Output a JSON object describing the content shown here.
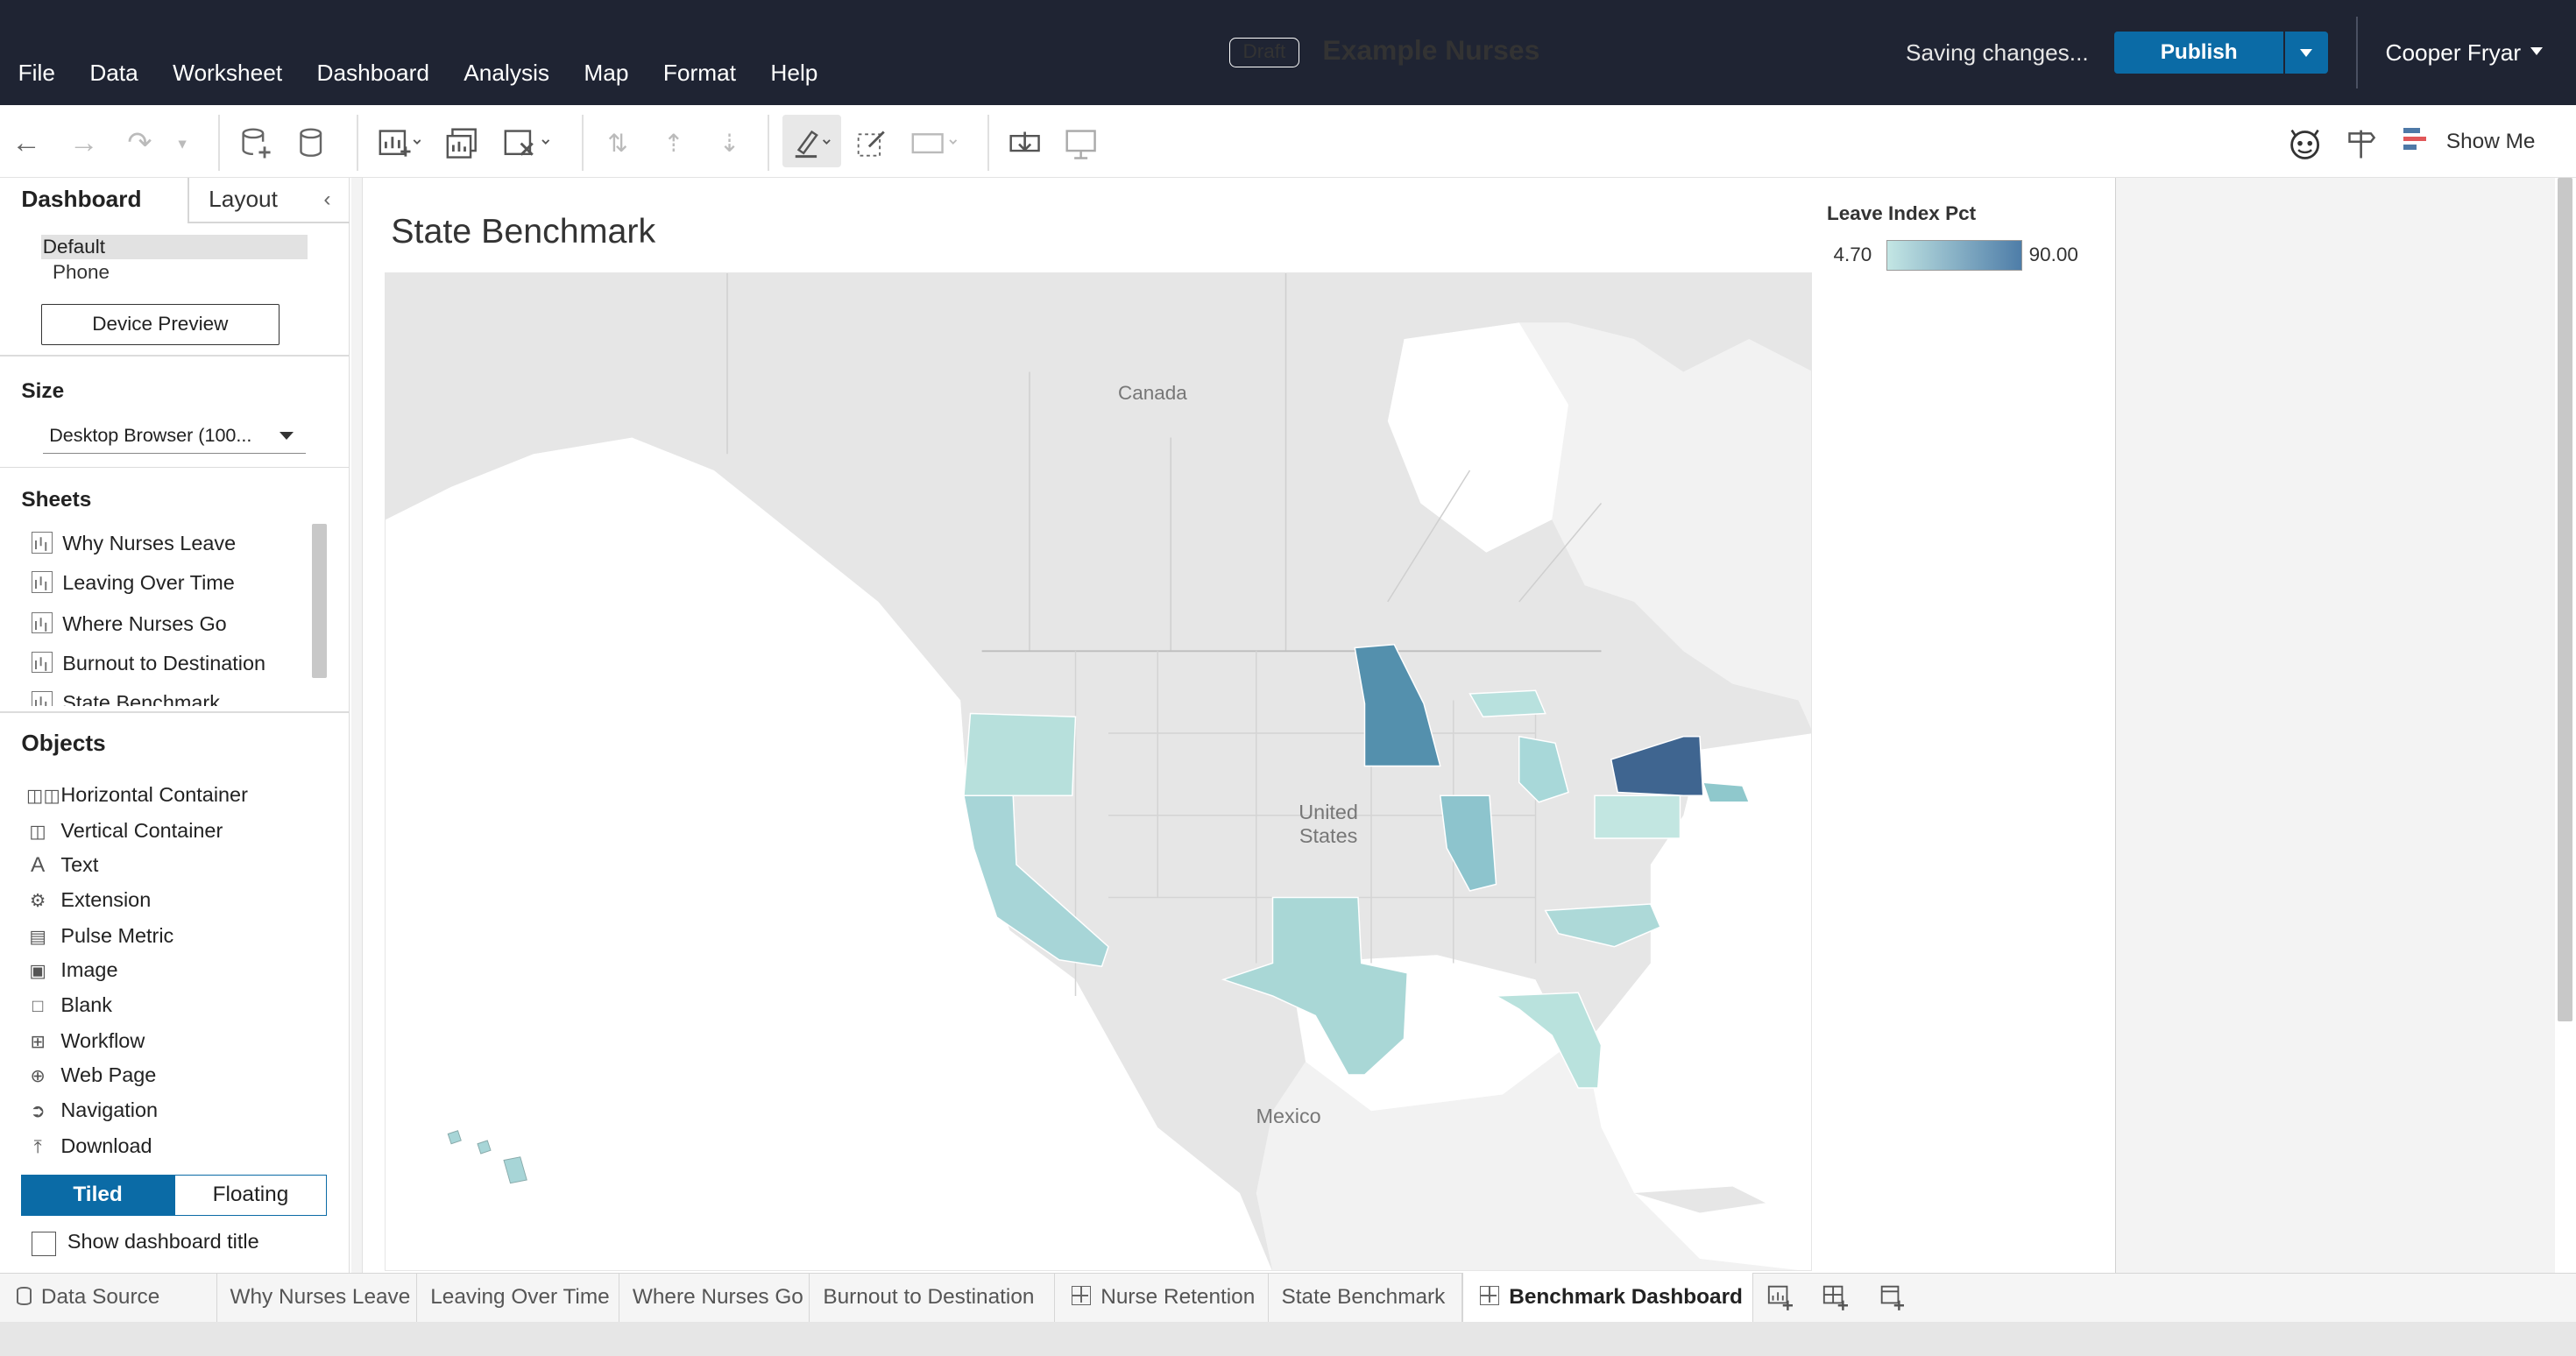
{
  "menu": [
    "File",
    "Data",
    "Worksheet",
    "Dashboard",
    "Analysis",
    "Map",
    "Format",
    "Help"
  ],
  "header": {
    "draft_badge": "Draft",
    "workbook_title": "Example Nurses",
    "saving_status": "Saving changes...",
    "publish_label": "Publish",
    "user_name": "Cooper Fryar"
  },
  "toolbar": {
    "show_me_label": "Show Me"
  },
  "left_panel": {
    "tabs": {
      "dashboard": "Dashboard",
      "layout": "Layout"
    },
    "device": {
      "default": "Default",
      "phone": "Phone",
      "preview_button": "Device Preview"
    },
    "size": {
      "title": "Size",
      "selected": "Desktop Browser (100..."
    },
    "sheets": {
      "title": "Sheets",
      "items": [
        "Why Nurses Leave",
        "Leaving Over Time",
        "Where Nurses Go",
        "Burnout to Destination",
        "State Benchmark"
      ]
    },
    "objects": {
      "title": "Objects",
      "items": [
        "Horizontal Container",
        "Vertical Container",
        "Text",
        "Extension",
        "Pulse Metric",
        "Image",
        "Blank",
        "Workflow",
        "Web Page",
        "Navigation",
        "Download"
      ]
    },
    "layout_mode": {
      "tiled": "Tiled",
      "floating": "Floating"
    },
    "show_dashboard_title": "Show dashboard title"
  },
  "dashboard": {
    "sheet_title": "State Benchmark",
    "map_labels": {
      "canada": "Canada",
      "united_states_line1": "United",
      "united_states_line2": "States",
      "mexico": "Mexico"
    },
    "legend": {
      "title": "Leave Index Pct",
      "min": "4.70",
      "max": "90.00"
    }
  },
  "colors": {
    "accent": "#0b6ba6",
    "topbar": "#1f2433",
    "legend_low": "#c3e6e4",
    "legend_high": "#4e7da8"
  },
  "bottom_tabs": [
    {
      "label": "Data Source",
      "icon": "database-icon"
    },
    {
      "label": "Why Nurses Leave"
    },
    {
      "label": "Leaving Over Time"
    },
    {
      "label": "Where Nurses Go"
    },
    {
      "label": "Burnout to Destination"
    },
    {
      "label": "Nurse Retention",
      "icon": "dashboard-icon"
    },
    {
      "label": "State Benchmark"
    },
    {
      "label": "Benchmark Dashboard",
      "icon": "dashboard-icon",
      "active": true
    }
  ]
}
